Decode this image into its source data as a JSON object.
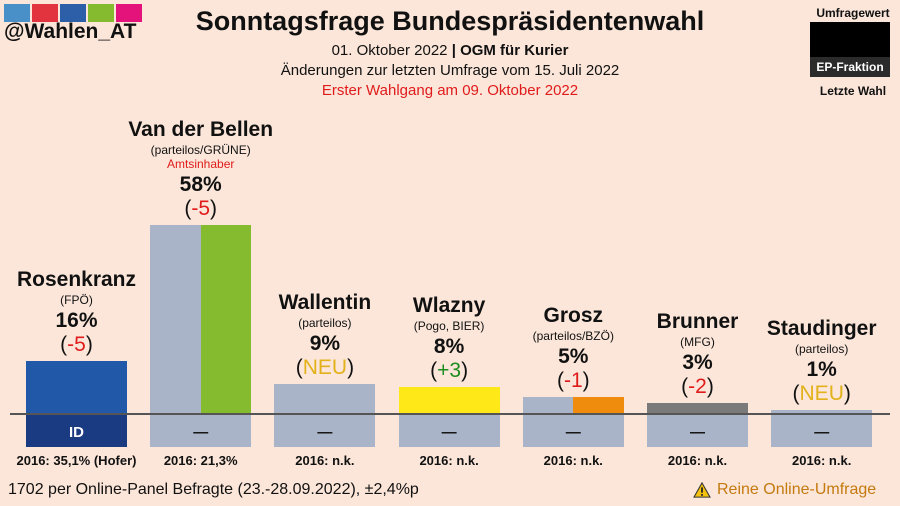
{
  "brand": {
    "handle": "@Wahlen_AT",
    "stripe_colors": [
      "#4a90c8",
      "#e2343f",
      "#2d5fa8",
      "#85bb2f",
      "#e3137b"
    ]
  },
  "header": {
    "title": "Sonntagsfrage Bundespräsidentenwahl",
    "date": "01. Oktober 2022",
    "separator": "|",
    "pollster": "OGM für Kurier",
    "change_note": "Änderungen zur letzten Umfrage vom 15. Juli 2022",
    "election_note": "Erster Wahlgang am 09. Oktober 2022"
  },
  "legend": {
    "top": "Umfragewert",
    "box_label": "EP-Fraktion",
    "bottom": "Letzte Wahl"
  },
  "chart_data": {
    "type": "bar",
    "ylim": [
      0,
      60
    ],
    "candidates": [
      {
        "name": "Rosenkranz",
        "party": "(FPÖ)",
        "note": "",
        "value": 16,
        "value_label": "16%",
        "change_open": "(",
        "change": "-5",
        "change_close": ")",
        "change_color": "#e01b1b",
        "color": "#2158a8",
        "color_right": "#2158a8",
        "below_label": "ID",
        "below_color": "#1a3a82",
        "below_text_color": "#ffffff",
        "prev": "2016: 35,1% (Hofer)"
      },
      {
        "name": "Van der Bellen",
        "party": "(parteilos/GRÜNE)",
        "note": "Amtsinhaber",
        "value": 58,
        "value_label": "58%",
        "change_open": "(",
        "change": "-5",
        "change_close": ")",
        "change_color": "#e01b1b",
        "color": "#aab4c8",
        "color_right": "#85bb2f",
        "below_label": "—",
        "below_color": "#aab4c8",
        "below_text_color": "#111111",
        "prev": "2016: 21,3%"
      },
      {
        "name": "Wallentin",
        "party": "(parteilos)",
        "note": "",
        "value": 9,
        "value_label": "9%",
        "change_open": "(",
        "change": "NEU",
        "change_close": ")",
        "change_color": "#e3b11a",
        "color": "#aab4c8",
        "color_right": "#aab4c8",
        "below_label": "—",
        "below_color": "#aab4c8",
        "below_text_color": "#111111",
        "prev": "2016: n.k."
      },
      {
        "name": "Wlazny",
        "party": "(Pogo, BIER)",
        "note": "",
        "value": 8,
        "value_label": "8%",
        "change_open": "(",
        "change": "+3",
        "change_close": ")",
        "change_color": "#1e8c1e",
        "color": "#ffe818",
        "color_right": "#ffe818",
        "below_label": "—",
        "below_color": "#aab4c8",
        "below_text_color": "#111111",
        "prev": "2016: n.k."
      },
      {
        "name": "Grosz",
        "party": "(parteilos/BZÖ)",
        "note": "",
        "value": 5,
        "value_label": "5%",
        "change_open": "(",
        "change": "-1",
        "change_close": ")",
        "change_color": "#e01b1b",
        "color": "#aab4c8",
        "color_right": "#ef8c0e",
        "below_label": "—",
        "below_color": "#aab4c8",
        "below_text_color": "#111111",
        "prev": "2016: n.k."
      },
      {
        "name": "Brunner",
        "party": "(MFG)",
        "note": "",
        "value": 3,
        "value_label": "3%",
        "change_open": "(",
        "change": "-2",
        "change_close": ")",
        "change_color": "#e01b1b",
        "color": "#7a7a7a",
        "color_right": "#7a7a7a",
        "below_label": "—",
        "below_color": "#aab4c8",
        "below_text_color": "#111111",
        "prev": "2016: n.k."
      },
      {
        "name": "Staudinger",
        "party": "(parteilos)",
        "note": "",
        "value": 1,
        "value_label": "1%",
        "change_open": "(",
        "change": "NEU",
        "change_close": ")",
        "change_color": "#e3b11a",
        "color": "#aab4c8",
        "color_right": "#aab4c8",
        "below_label": "—",
        "below_color": "#aab4c8",
        "below_text_color": "#111111",
        "prev": "2016: n.k."
      }
    ]
  },
  "footer": {
    "sample": "1702 per Online-Panel Befragte (23.-28.09.2022), ±2,4%p",
    "warning": "Reine Online-Umfrage"
  }
}
